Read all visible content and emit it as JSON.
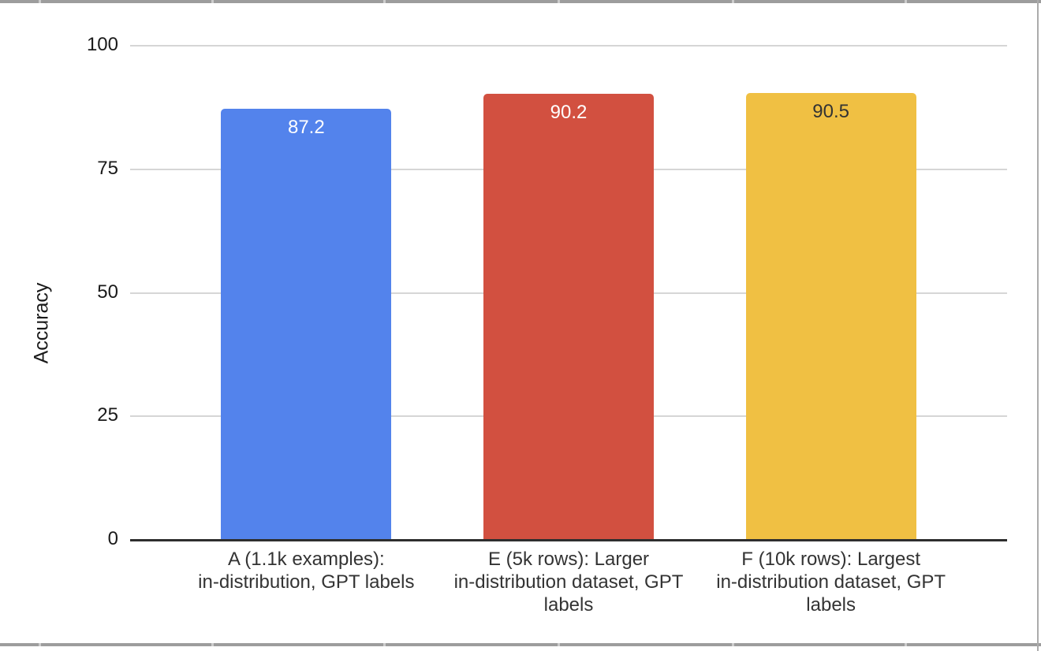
{
  "frame": {
    "top_border_color": "#9d9d9d",
    "bottom_border_color": "#9d9d9d",
    "right_border_color": "#ababab",
    "notch_color": "#cccccc"
  },
  "chart_data": {
    "type": "bar",
    "title": "",
    "xlabel": "",
    "ylabel": "Accuracy",
    "ylim": [
      0,
      100
    ],
    "yticks": [
      0,
      25,
      50,
      75,
      100
    ],
    "grid": true,
    "legend_position": "none",
    "categories": [
      "A (1.1k examples): in-distribution, GPT labels",
      "E (5k rows): Larger in-distribution dataset, GPT labels",
      "F (10k rows): Largest in-distribution dataset, GPT labels"
    ],
    "category_lines": [
      [
        "A (1.1k examples):",
        "in-distribution, GPT labels"
      ],
      [
        "E (5k rows): Larger",
        "in-distribution dataset, GPT",
        "labels"
      ],
      [
        "F (10k rows): Largest",
        "in-distribution dataset, GPT",
        "labels"
      ]
    ],
    "series": [
      {
        "name": "Accuracy",
        "values": [
          87.2,
          90.2,
          90.5
        ]
      }
    ],
    "value_labels": [
      "87.2",
      "90.2",
      "90.5"
    ],
    "colors": {
      "bars": [
        "#5383ec",
        "#d25040",
        "#f0c043"
      ],
      "value_labels": [
        "#ffffff",
        "#ffffff",
        "#333333"
      ],
      "gridline": "#d6d6d6",
      "axis_line": "#2e2e2e",
      "tick_label": "#1a1a1a",
      "category_label": "#333333",
      "background": "#ffffff"
    }
  }
}
